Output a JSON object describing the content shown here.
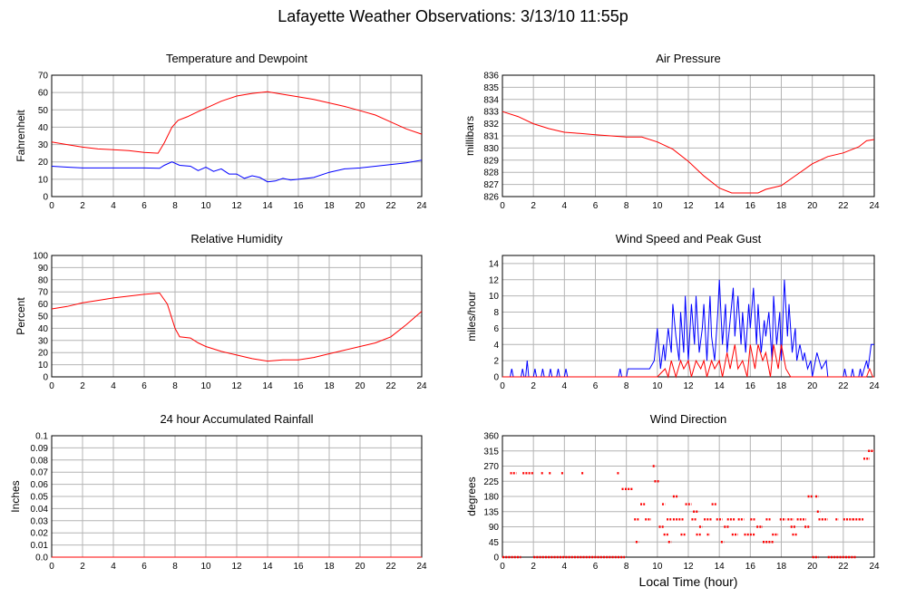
{
  "title": "Lafayette Weather Observations: 3/13/10 11:55p",
  "x_axis_label": "Local Time (hour)",
  "colors": {
    "red": "#ff0000",
    "blue": "#0000ff",
    "grid": "#b4b4b4"
  },
  "chart_data": [
    {
      "id": "temp",
      "type": "line",
      "title": "Temperature and Dewpoint",
      "ylabel": "Fahrenheit",
      "xlim": [
        0,
        24
      ],
      "ylim": [
        0,
        70
      ],
      "yticks": [
        0,
        10,
        20,
        30,
        40,
        50,
        60,
        70
      ],
      "xticks": [
        0,
        2,
        4,
        6,
        8,
        10,
        12,
        14,
        16,
        18,
        20,
        22,
        24
      ],
      "series": [
        {
          "color": "red",
          "x": [
            0,
            1,
            2,
            3,
            4,
            5,
            6,
            6.9,
            7.3,
            7.8,
            8.2,
            8.8,
            9.5,
            10,
            11,
            12,
            13,
            14,
            15,
            16,
            17,
            18,
            19,
            20,
            21,
            22,
            23,
            24
          ],
          "y": [
            31.5,
            30,
            28.5,
            27.5,
            27,
            26.5,
            25.5,
            25,
            31,
            40,
            44,
            46,
            49,
            51,
            55,
            58,
            59.5,
            60.5,
            59,
            57.5,
            56,
            54,
            52,
            49.5,
            47,
            43,
            39,
            36
          ]
        },
        {
          "color": "blue",
          "x": [
            0,
            1,
            2,
            3,
            4,
            5,
            6,
            7,
            7.3,
            7.8,
            8.3,
            9,
            9.5,
            10,
            10.5,
            11,
            11.5,
            12,
            12.5,
            13,
            13.5,
            14,
            14.5,
            15,
            15.5,
            16,
            17,
            18,
            19,
            20,
            21,
            22,
            23,
            24
          ],
          "y": [
            17.5,
            17,
            16.5,
            16.5,
            16.5,
            16.5,
            16.5,
            16.3,
            18,
            20,
            18,
            17.5,
            15,
            17,
            14.5,
            16,
            13,
            13,
            10.5,
            12,
            11,
            8.5,
            9,
            10.5,
            9.5,
            10,
            11,
            14,
            16,
            16.5,
            17.5,
            18.5,
            19.5,
            21
          ]
        }
      ]
    },
    {
      "id": "pressure",
      "type": "line",
      "title": "Air Pressure",
      "ylabel": "millibars",
      "xlim": [
        0,
        24
      ],
      "ylim": [
        826,
        836
      ],
      "yticks": [
        826,
        827,
        828,
        829,
        830,
        831,
        832,
        833,
        834,
        835,
        836
      ],
      "xticks": [
        0,
        2,
        4,
        6,
        8,
        10,
        12,
        14,
        16,
        18,
        20,
        22,
        24
      ],
      "series": [
        {
          "color": "red",
          "x": [
            0,
            1,
            2,
            3,
            4,
            5,
            6,
            7,
            8,
            9,
            10,
            11,
            12,
            13,
            14,
            14.8,
            15.5,
            16.5,
            17,
            18,
            19,
            20,
            21,
            22,
            23,
            23.5,
            24
          ],
          "y": [
            833,
            832.6,
            832,
            831.6,
            831.3,
            831.2,
            831.1,
            831,
            830.9,
            830.9,
            830.5,
            829.9,
            828.9,
            827.7,
            826.7,
            826.3,
            826.3,
            826.3,
            826.6,
            826.9,
            827.8,
            828.7,
            829.3,
            829.6,
            830.1,
            830.6,
            830.7
          ]
        }
      ]
    },
    {
      "id": "humidity",
      "type": "line",
      "title": "Relative Humidity",
      "ylabel": "Percent",
      "xlim": [
        0,
        24
      ],
      "ylim": [
        0,
        100
      ],
      "yticks": [
        0,
        10,
        20,
        30,
        40,
        50,
        60,
        70,
        80,
        90,
        100
      ],
      "xticks": [
        0,
        2,
        4,
        6,
        8,
        10,
        12,
        14,
        16,
        18,
        20,
        22,
        24
      ],
      "series": [
        {
          "color": "red",
          "x": [
            0,
            1,
            2,
            3,
            4,
            5,
            6,
            7,
            7.5,
            8,
            8.3,
            9,
            9.5,
            10,
            11,
            12,
            13,
            14,
            15,
            16,
            17,
            18,
            19,
            20,
            21,
            22,
            23,
            24
          ],
          "y": [
            56,
            58,
            61,
            63,
            65,
            66.5,
            68,
            69,
            60,
            40,
            33,
            32,
            28,
            25,
            21,
            18,
            15,
            13,
            14,
            14,
            16,
            19,
            22,
            25,
            28,
            33,
            43,
            54
          ]
        }
      ]
    },
    {
      "id": "wind",
      "type": "line",
      "title": "Wind Speed and Peak Gust",
      "ylabel": "miles/hour",
      "xlim": [
        0,
        24
      ],
      "ylim": [
        0,
        15
      ],
      "yticks": [
        0,
        2,
        4,
        6,
        8,
        10,
        12,
        14
      ],
      "xticks": [
        0,
        2,
        4,
        6,
        8,
        10,
        12,
        14,
        16,
        18,
        20,
        22,
        24
      ],
      "series": [
        {
          "color": "blue",
          "x": [
            0,
            0.5,
            0.6,
            0.7,
            1.2,
            1.3,
            1.4,
            1.5,
            1.6,
            1.7,
            2,
            2.1,
            2.2,
            2.5,
            2.6,
            2.7,
            3,
            3.1,
            3.2,
            3.5,
            3.6,
            3.7,
            4,
            4.1,
            4.2,
            4.5,
            5,
            6,
            7,
            7.5,
            7.6,
            7.7,
            8,
            8.1,
            8.2,
            8.5,
            9,
            9.5,
            9.8,
            10,
            10.2,
            10.4,
            10.5,
            10.7,
            10.9,
            11,
            11.2,
            11.4,
            11.5,
            11.7,
            11.8,
            12,
            12.2,
            12.4,
            12.5,
            12.7,
            12.9,
            13,
            13.2,
            13.4,
            13.5,
            13.7,
            13.9,
            14,
            14.2,
            14.4,
            14.5,
            14.7,
            14.9,
            15,
            15.2,
            15.4,
            15.5,
            15.7,
            15.9,
            16,
            16.2,
            16.4,
            16.5,
            16.7,
            16.9,
            17,
            17.2,
            17.4,
            17.5,
            17.7,
            17.9,
            18,
            18.2,
            18.4,
            18.5,
            18.7,
            18.9,
            19,
            19.2,
            19.4,
            19.5,
            19.7,
            19.9,
            20,
            20.3,
            20.6,
            20.9,
            21,
            21.2,
            22,
            22.1,
            22.2,
            22.5,
            22.6,
            22.7,
            23,
            23.1,
            23.2,
            23.5,
            23.6,
            23.8,
            24
          ],
          "y": [
            0,
            0,
            1,
            0,
            0,
            1,
            0,
            0,
            2,
            0,
            0,
            1,
            0,
            0,
            1,
            0,
            0,
            1,
            0,
            0,
            1,
            0,
            0,
            1,
            0,
            0,
            0,
            0,
            0,
            0,
            1,
            0,
            0,
            1,
            1,
            1,
            1,
            1,
            2,
            6,
            1,
            4,
            2,
            6,
            3,
            9,
            5,
            2,
            8,
            3,
            10,
            2,
            9,
            4,
            10,
            3,
            6,
            9,
            2,
            10,
            5,
            2,
            8,
            12,
            4,
            9,
            3,
            7,
            11,
            5,
            10,
            4,
            8,
            3,
            9,
            6,
            11,
            4,
            9,
            3,
            7,
            5,
            8,
            2,
            10,
            4,
            8,
            2,
            12,
            5,
            9,
            3,
            6,
            2,
            4,
            2,
            3,
            1,
            2,
            0,
            3,
            1,
            2,
            0,
            0,
            0,
            1,
            0,
            0,
            1,
            0,
            0,
            1,
            0,
            2,
            1,
            4,
            4
          ]
        },
        {
          "color": "red",
          "x": [
            0,
            10,
            10.5,
            10.7,
            10.9,
            11.2,
            11.5,
            11.7,
            12,
            12.2,
            12.5,
            12.8,
            13,
            13.2,
            13.5,
            13.7,
            14,
            14.2,
            14.5,
            14.7,
            15,
            15.2,
            15.5,
            15.8,
            16,
            16.3,
            16.5,
            16.8,
            17,
            17.3,
            17.5,
            17.8,
            18,
            18.3,
            18.6,
            19,
            19.5,
            23.5,
            23.7,
            23.9,
            24
          ],
          "y": [
            0,
            0,
            1,
            0,
            2,
            0,
            2,
            1,
            2,
            0,
            2,
            1,
            2,
            0,
            2,
            1,
            2,
            0,
            3,
            1,
            4,
            1,
            2,
            0,
            4,
            1,
            4,
            2,
            3,
            0,
            4,
            1,
            4,
            1,
            0,
            0,
            0,
            0,
            1,
            0,
            0
          ]
        }
      ]
    },
    {
      "id": "rain",
      "type": "line",
      "title": "24 hour Accumulated Rainfall",
      "ylabel": "Inches",
      "xlim": [
        0,
        24
      ],
      "ylim": [
        0,
        0.1
      ],
      "yticks": [
        0.0,
        0.01,
        0.02,
        0.03,
        0.04,
        0.05,
        0.06,
        0.07,
        0.08,
        0.09,
        0.1
      ],
      "ytick_labels": [
        "0.0",
        "0.01",
        "0.02",
        "0.03",
        "0.04",
        "0.05",
        "0.06",
        "0.07",
        "0.08",
        "0.09",
        "0.1"
      ],
      "xticks": [
        0,
        2,
        4,
        6,
        8,
        10,
        12,
        14,
        16,
        18,
        20,
        22,
        24
      ],
      "series": [
        {
          "color": "red",
          "x": [
            0,
            24
          ],
          "y": [
            0,
            0
          ]
        }
      ]
    },
    {
      "id": "direction",
      "type": "scatter",
      "title": "Wind Direction",
      "ylabel": "degrees",
      "xlim": [
        0,
        24
      ],
      "ylim": [
        0,
        360
      ],
      "yticks": [
        0,
        45,
        90,
        135,
        180,
        225,
        270,
        315,
        360
      ],
      "xticks": [
        0,
        2,
        4,
        6,
        8,
        10,
        12,
        14,
        16,
        18,
        20,
        22,
        24
      ],
      "series": [
        {
          "color": "red",
          "segments": [
            [
              0,
              1.2,
              0
            ],
            [
              0.5,
              0.9,
              249
            ],
            [
              1.3,
              2,
              249
            ],
            [
              2,
              7.9,
              0
            ],
            [
              2.5,
              2.6,
              249
            ],
            [
              3,
              3.1,
              249
            ],
            [
              3.8,
              3.9,
              249
            ],
            [
              5.1,
              5.2,
              249
            ],
            [
              7.4,
              7.5,
              249
            ],
            [
              7.7,
              7.8,
              202
            ],
            [
              7.9,
              8.4,
              202
            ],
            [
              8.5,
              8.8,
              112
            ],
            [
              8.6,
              8.8,
              45
            ],
            [
              8.9,
              9.2,
              157
            ],
            [
              9.2,
              9.6,
              112
            ],
            [
              9.7,
              9.9,
              270
            ],
            [
              9.8,
              10.1,
              225
            ],
            [
              10.1,
              10.4,
              90
            ],
            [
              10.3,
              10.5,
              157
            ],
            [
              10.4,
              10.7,
              67
            ],
            [
              10.6,
              10.9,
              112
            ],
            [
              10.7,
              10.9,
              45
            ],
            [
              11,
              11.3,
              180
            ],
            [
              11,
              11.7,
              112
            ],
            [
              11.5,
              11.8,
              67
            ],
            [
              11.8,
              12.2,
              157
            ],
            [
              12.2,
              12.5,
              112
            ],
            [
              12.3,
              12.6,
              135
            ],
            [
              12.5,
              12.8,
              67
            ],
            [
              12.7,
              12.9,
              90
            ],
            [
              13,
              13.5,
              112
            ],
            [
              13.2,
              13.4,
              67
            ],
            [
              13.5,
              13.8,
              157
            ],
            [
              13.8,
              14.2,
              112
            ],
            [
              14.1,
              14.3,
              45
            ],
            [
              14.3,
              14.6,
              90
            ],
            [
              14.5,
              15,
              112
            ],
            [
              14.8,
              15.2,
              67
            ],
            [
              15.2,
              15.6,
              112
            ],
            [
              15.6,
              16.3,
              67
            ],
            [
              16,
              16.3,
              112
            ],
            [
              16.4,
              16.8,
              90
            ],
            [
              16.8,
              17.5,
              45
            ],
            [
              17,
              17.3,
              112
            ],
            [
              17.4,
              17.8,
              67
            ],
            [
              17.9,
              18.3,
              112
            ],
            [
              18.4,
              18.8,
              112
            ],
            [
              18.6,
              18.9,
              90
            ],
            [
              18.7,
              19,
              67
            ],
            [
              19,
              19.6,
              112
            ],
            [
              19.5,
              19.8,
              90
            ],
            [
              19.7,
              20,
              180
            ],
            [
              20,
              20.4,
              0
            ],
            [
              20.2,
              20.4,
              180
            ],
            [
              20.3,
              20.5,
              135
            ],
            [
              20.4,
              20.6,
              112
            ],
            [
              20.6,
              21,
              112
            ],
            [
              21,
              22.8,
              0
            ],
            [
              21.5,
              21.7,
              112
            ],
            [
              22,
              22.6,
              112
            ],
            [
              22.6,
              23,
              112
            ],
            [
              23,
              23.3,
              112
            ],
            [
              23.3,
              23.7,
              292
            ],
            [
              23.6,
              24,
              315
            ]
          ]
        }
      ]
    }
  ]
}
